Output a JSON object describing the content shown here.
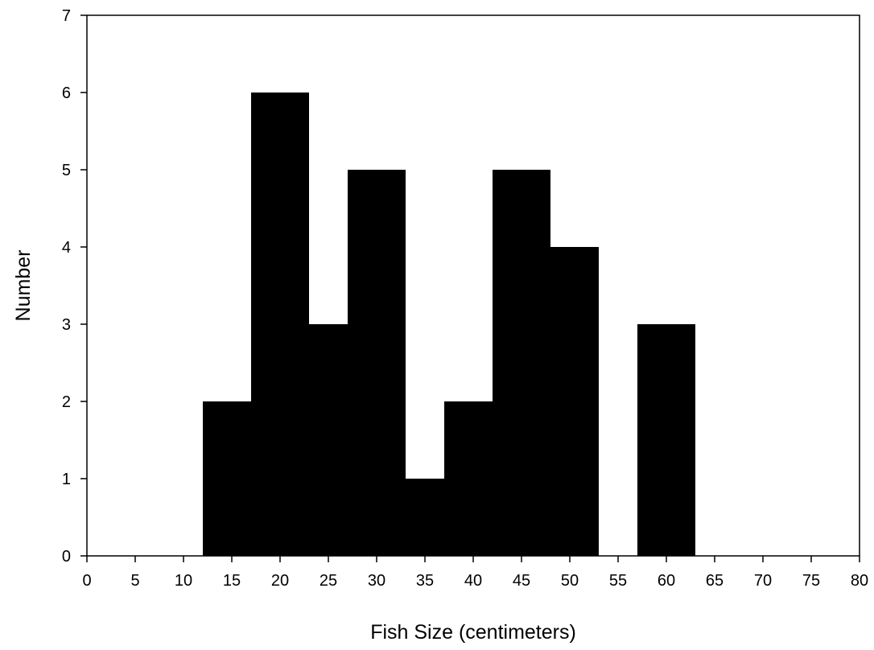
{
  "chart_data": {
    "type": "bar",
    "title": "",
    "xlabel": "Fish Size (centimeters)",
    "ylabel": "Number",
    "xlim": [
      0,
      80
    ],
    "ylim": [
      0,
      7
    ],
    "x_ticks": [
      0,
      5,
      10,
      15,
      20,
      25,
      30,
      35,
      40,
      45,
      50,
      55,
      60,
      65,
      70,
      75,
      80
    ],
    "y_ticks": [
      0,
      1,
      2,
      3,
      4,
      5,
      6,
      7
    ],
    "x": [
      15,
      20,
      25,
      30,
      35,
      40,
      45,
      50,
      60
    ],
    "values": [
      2,
      6,
      3,
      5,
      1,
      2,
      5,
      4,
      3
    ],
    "bar_color": "#000000",
    "grid": false,
    "legend": "none"
  }
}
